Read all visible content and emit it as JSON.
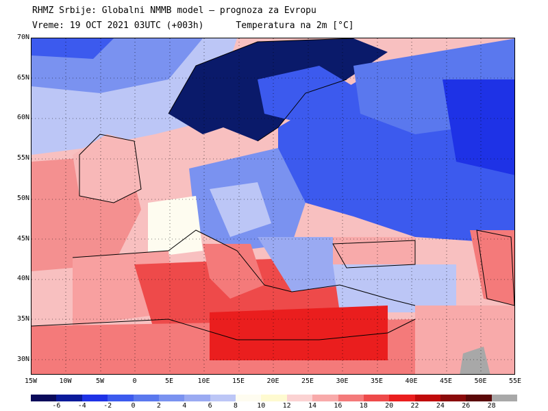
{
  "title_line1": "RHMZ Srbije: Globalni NMMB model — prognoza za Evropu",
  "title_line2_time": "Vreme: 19 OCT 2021 03UTC (+003h)",
  "title_line2_var": "Temperatura na 2m [°C]",
  "lat_labels": [
    "70N",
    "65N",
    "60N",
    "55N",
    "50N",
    "45N",
    "40N",
    "35N",
    "30N"
  ],
  "lon_labels": [
    "15W",
    "10W",
    "5W",
    "0",
    "5E",
    "10E",
    "15E",
    "20E",
    "25E",
    "30E",
    "35E",
    "40E",
    "45E",
    "50E",
    "55E"
  ],
  "colorbar": {
    "colors": [
      "#0a0a5a",
      "#0a1a9a",
      "#1e32e6",
      "#3c5aee",
      "#5a78ee",
      "#7a92f0",
      "#9aaaf2",
      "#bcc6f6",
      "#fefcf0",
      "#fefad0",
      "#fbd2d2",
      "#f8aaaa",
      "#f47a7a",
      "#ee4a4a",
      "#ea1e1e",
      "#c00a0a",
      "#8a0a0a",
      "#5a0808",
      "#a8a8a8"
    ],
    "labels": [
      "-6",
      "-4",
      "-2",
      "0",
      "2",
      "4",
      "6",
      "8",
      "10",
      "12",
      "14",
      "16",
      "18",
      "20",
      "22",
      "24",
      "26",
      "28"
    ]
  },
  "map_colors": {
    "ocean_warm": "#f8b8b8",
    "ocean_hot": "#f07070",
    "mediterranean": "#ee4a4a",
    "africa": "#f47a7a",
    "cold_land": "#5a78ee",
    "very_cold": "#1e32e6",
    "coldest": "#0a1a6a",
    "mild": "#bcc6f6",
    "neutral": "#fefcf0"
  }
}
